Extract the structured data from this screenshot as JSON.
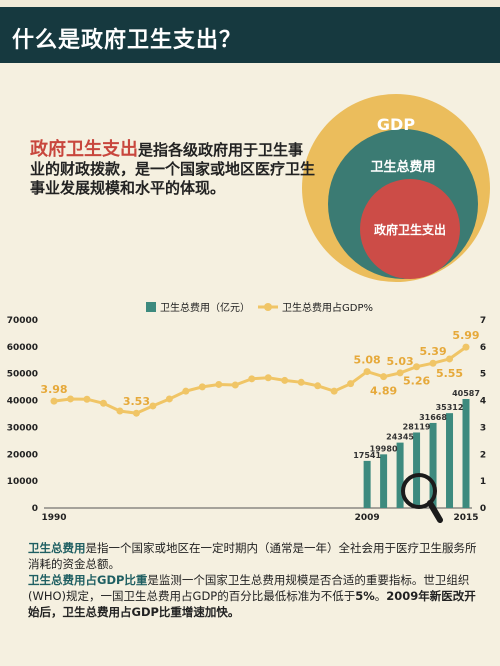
{
  "header": {
    "title": "什么是政府卫生支出？"
  },
  "intro": {
    "highlight": "政府卫生支出",
    "text": "是指各级政府用于卫生事业的财政拨款，是一个国家或地区医疗卫生事业发展规模和水平的体现。"
  },
  "circles": {
    "outer": "GDP",
    "middle": "卫生总费用",
    "inner": "政府卫生支出"
  },
  "colors": {
    "header_bg": "#16393f",
    "gdp": "#ebbd5c",
    "total": "#3b7b73",
    "gov": "#cc4c47",
    "highlight": "#c8463d",
    "bar": "#3d8a7e",
    "line": "#f0c566"
  },
  "chart_data": {
    "type": "bar+line",
    "legend": [
      "卫生总费用（亿元）",
      "卫生总费用占GDP%"
    ],
    "x": [
      1990,
      1991,
      1992,
      1993,
      1994,
      1995,
      1996,
      1997,
      1998,
      1999,
      2000,
      2001,
      2002,
      2003,
      2004,
      2005,
      2006,
      2007,
      2008,
      2009,
      2010,
      2011,
      2012,
      2013,
      2014,
      2015
    ],
    "x_tick_labels": [
      "1990",
      "2009",
      "2015"
    ],
    "series": [
      {
        "name": "卫生总费用占GDP%",
        "axis": "right",
        "type": "line",
        "values": [
          3.98,
          4.06,
          4.05,
          3.9,
          3.61,
          3.53,
          3.8,
          4.06,
          4.35,
          4.51,
          4.6,
          4.58,
          4.81,
          4.85,
          4.75,
          4.68,
          4.55,
          4.35,
          4.63,
          5.08,
          4.89,
          5.03,
          5.26,
          5.39,
          5.55,
          5.99
        ]
      },
      {
        "name": "卫生总费用（亿元）",
        "axis": "left",
        "type": "bar",
        "x": [
          2009,
          2010,
          2011,
          2012,
          2013,
          2014,
          2015
        ],
        "values": [
          17541,
          19980,
          24345,
          28119,
          31668,
          35312,
          40587
        ]
      }
    ],
    "line_labels": [
      {
        "year": 1990,
        "text": "3.98"
      },
      {
        "year": 1995,
        "text": "3.53"
      },
      {
        "year": 2009,
        "text": "5.08"
      },
      {
        "year": 2010,
        "text": "4.89"
      },
      {
        "year": 2011,
        "text": "5.03"
      },
      {
        "year": 2012,
        "text": "5.26"
      },
      {
        "year": 2013,
        "text": "5.39"
      },
      {
        "year": 2014,
        "text": "5.55"
      },
      {
        "year": 2015,
        "text": "5.99"
      }
    ],
    "y_left": {
      "ticks": [
        "0",
        "10000",
        "20000",
        "30000",
        "40000",
        "50000",
        "60000",
        "70000"
      ],
      "range": [
        0,
        70000
      ]
    },
    "y_right": {
      "ticks": [
        "0",
        "1",
        "2",
        "3",
        "4",
        "5",
        "6",
        "7"
      ],
      "range": [
        0,
        7
      ]
    }
  },
  "bottom": {
    "p1_term": "卫生总费用",
    "p1_text": "是指一个国家或地区在一定时期内（通常是一年）全社会用于医疗卫生服务所消耗的资金总额。",
    "p2_term": "卫生总费用占GDP比重",
    "p2_text1": "是监测一个国家卫生总费用规模是否合适的重要指标。世卫组织(WHO)规定，一国卫生总费用占GDP的百分比最低标准为不低于",
    "p2_pct": "5%",
    "p2_sep": "。",
    "p2_text2": "2009年新医改开始后，卫生总费用占GDP比重增速加快。"
  }
}
